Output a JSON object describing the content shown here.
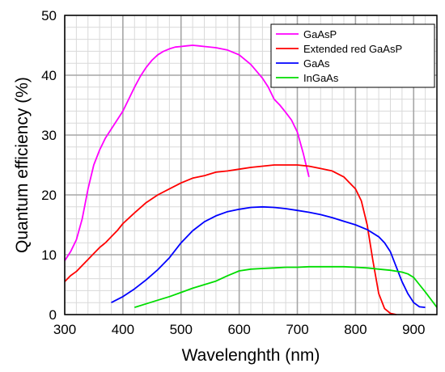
{
  "chart_data": {
    "type": "line",
    "title": "",
    "xlabel": "Wavelenghth (nm)",
    "ylabel": "Quantum efficiency (%)",
    "xlim": [
      300,
      940
    ],
    "ylim": [
      0,
      50
    ],
    "x_ticks": [
      300,
      400,
      500,
      600,
      700,
      800,
      900
    ],
    "y_ticks": [
      0,
      10,
      20,
      30,
      40,
      50
    ],
    "x_minor_step": 20,
    "y_minor_step": 2,
    "grid": true,
    "legend_position": "top-right",
    "series": [
      {
        "name": "GaAsP",
        "color": "#ff00ff",
        "points": [
          [
            300,
            9
          ],
          [
            310,
            10.5
          ],
          [
            320,
            12.5
          ],
          [
            330,
            16
          ],
          [
            340,
            21
          ],
          [
            350,
            25
          ],
          [
            360,
            27.5
          ],
          [
            370,
            29.5
          ],
          [
            380,
            31
          ],
          [
            390,
            32.5
          ],
          [
            400,
            34
          ],
          [
            410,
            36
          ],
          [
            420,
            38
          ],
          [
            430,
            39.8
          ],
          [
            440,
            41.3
          ],
          [
            450,
            42.5
          ],
          [
            460,
            43.4
          ],
          [
            470,
            44
          ],
          [
            480,
            44.4
          ],
          [
            490,
            44.7
          ],
          [
            500,
            44.8
          ],
          [
            510,
            44.9
          ],
          [
            520,
            45
          ],
          [
            530,
            44.9
          ],
          [
            540,
            44.8
          ],
          [
            560,
            44.6
          ],
          [
            580,
            44.2
          ],
          [
            600,
            43.4
          ],
          [
            620,
            41.8
          ],
          [
            640,
            39.5
          ],
          [
            650,
            38
          ],
          [
            660,
            36
          ],
          [
            670,
            35
          ],
          [
            680,
            33.8
          ],
          [
            690,
            32.5
          ],
          [
            700,
            30.5
          ],
          [
            710,
            27
          ],
          [
            720,
            23
          ]
        ]
      },
      {
        "name": "Extended red GaAsP",
        "color": "#ff0000",
        "points": [
          [
            300,
            5.5
          ],
          [
            310,
            6.5
          ],
          [
            320,
            7.2
          ],
          [
            330,
            8.2
          ],
          [
            340,
            9.2
          ],
          [
            350,
            10.2
          ],
          [
            360,
            11.2
          ],
          [
            370,
            12
          ],
          [
            380,
            13
          ],
          [
            390,
            14
          ],
          [
            400,
            15.2
          ],
          [
            420,
            17
          ],
          [
            440,
            18.7
          ],
          [
            460,
            20
          ],
          [
            480,
            21
          ],
          [
            500,
            22
          ],
          [
            520,
            22.8
          ],
          [
            540,
            23.2
          ],
          [
            560,
            23.8
          ],
          [
            580,
            24
          ],
          [
            600,
            24.3
          ],
          [
            620,
            24.6
          ],
          [
            640,
            24.8
          ],
          [
            660,
            25
          ],
          [
            680,
            25
          ],
          [
            700,
            25
          ],
          [
            720,
            24.8
          ],
          [
            740,
            24.4
          ],
          [
            760,
            24
          ],
          [
            780,
            23
          ],
          [
            790,
            22
          ],
          [
            800,
            21
          ],
          [
            810,
            19
          ],
          [
            820,
            15
          ],
          [
            830,
            9
          ],
          [
            840,
            3.5
          ],
          [
            850,
            1
          ],
          [
            860,
            0.2
          ],
          [
            870,
            0
          ]
        ]
      },
      {
        "name": "GaAs",
        "color": "#0000ff",
        "points": [
          [
            380,
            2
          ],
          [
            400,
            3
          ],
          [
            420,
            4.3
          ],
          [
            440,
            5.8
          ],
          [
            460,
            7.5
          ],
          [
            480,
            9.5
          ],
          [
            500,
            12
          ],
          [
            520,
            14
          ],
          [
            540,
            15.5
          ],
          [
            560,
            16.5
          ],
          [
            580,
            17.2
          ],
          [
            600,
            17.6
          ],
          [
            620,
            17.9
          ],
          [
            640,
            18
          ],
          [
            660,
            17.9
          ],
          [
            680,
            17.7
          ],
          [
            700,
            17.4
          ],
          [
            720,
            17.1
          ],
          [
            740,
            16.7
          ],
          [
            760,
            16.2
          ],
          [
            780,
            15.6
          ],
          [
            800,
            15
          ],
          [
            820,
            14.2
          ],
          [
            840,
            13
          ],
          [
            850,
            12
          ],
          [
            860,
            10.5
          ],
          [
            870,
            8
          ],
          [
            880,
            5.5
          ],
          [
            890,
            3.5
          ],
          [
            900,
            2
          ],
          [
            910,
            1.3
          ],
          [
            920,
            1.2
          ]
        ]
      },
      {
        "name": "InGaAs",
        "color": "#00dd00",
        "points": [
          [
            420,
            1.2
          ],
          [
            440,
            1.8
          ],
          [
            460,
            2.4
          ],
          [
            480,
            3
          ],
          [
            500,
            3.7
          ],
          [
            520,
            4.4
          ],
          [
            540,
            5
          ],
          [
            560,
            5.6
          ],
          [
            580,
            6.5
          ],
          [
            600,
            7.3
          ],
          [
            620,
            7.6
          ],
          [
            640,
            7.7
          ],
          [
            660,
            7.8
          ],
          [
            680,
            7.9
          ],
          [
            700,
            7.9
          ],
          [
            720,
            8
          ],
          [
            740,
            8
          ],
          [
            760,
            8
          ],
          [
            780,
            8
          ],
          [
            800,
            7.9
          ],
          [
            820,
            7.8
          ],
          [
            840,
            7.6
          ],
          [
            860,
            7.4
          ],
          [
            880,
            7.1
          ],
          [
            890,
            6.8
          ],
          [
            900,
            6.2
          ],
          [
            910,
            5
          ],
          [
            920,
            3.8
          ],
          [
            930,
            2.5
          ],
          [
            940,
            1.2
          ]
        ]
      }
    ]
  }
}
